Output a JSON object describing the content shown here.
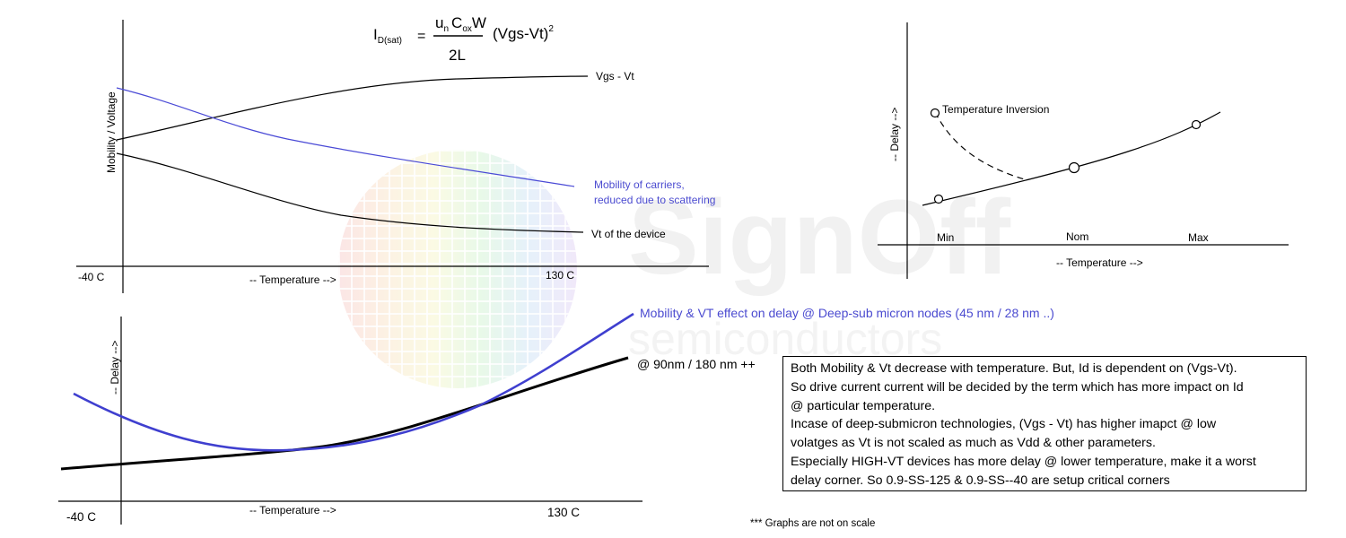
{
  "watermark": {
    "brand": "SignOff",
    "tagline": "semiconductors"
  },
  "colors": {
    "line": "#000000",
    "mobility": "#4a4ad6",
    "mobility_text": "#4b4bd0",
    "delay_blue": "#3f3fcf"
  },
  "formula": {
    "lhs_main": "I",
    "lhs_sub": "D(sat)",
    "equals": "=",
    "num_u": "u",
    "num_u_sub": "n",
    "num_c": "C",
    "num_c_sub": "ox",
    "num_w": "W",
    "denominator": "2L",
    "factor": "(Vgs-Vt)",
    "exponent": "2"
  },
  "graph1": {
    "y_label": "Mobility / Voltage",
    "x_label": "-- Temperature  -->",
    "x_min_label": "-40 C",
    "x_max_label": "130 C",
    "curve_vgs_label": "Vgs - Vt",
    "curve_mobility_label_1": "Mobility of carriers,",
    "curve_mobility_label_2": "reduced due to scattering",
    "curve_vt_label": "Vt of the device"
  },
  "graph2": {
    "y_label": "-- Delay -->",
    "x_label": "-- Temperature -->",
    "annotation": "Temperature Inversion",
    "tick_min": "Min",
    "tick_nom": "Nom",
    "tick_max": "Max"
  },
  "graph3": {
    "y_label": "-- Delay -->",
    "x_label": "-- Temperature  -->",
    "x_min_label": "-40 C",
    "x_max_label": "130 C",
    "curve_deep_label": "Mobility & VT effect on delay @ Deep-sub micron nodes  (45 nm / 28 nm ..)",
    "curve_old_label": "@ 90nm / 180 nm ++"
  },
  "notes": {
    "lines": [
      "Both Mobility & Vt decrease with temperature. But, Id is dependent on (Vgs-Vt).",
      "So drive current current will be decided by the term which has more impact on Id",
      "@ particular temperature.",
      "Incase of deep-submicron technologies, (Vgs - Vt) has higher imapct @ low",
      "volatges as Vt is not scaled as much as Vdd & other parameters.",
      "Especially HIGH-VT devices has more delay @ lower temperature, make it a worst",
      "delay corner. So 0.9-SS-125 & 0.9-SS--40 are setup critical corners"
    ]
  },
  "footnote": "*** Graphs are not on scale"
}
